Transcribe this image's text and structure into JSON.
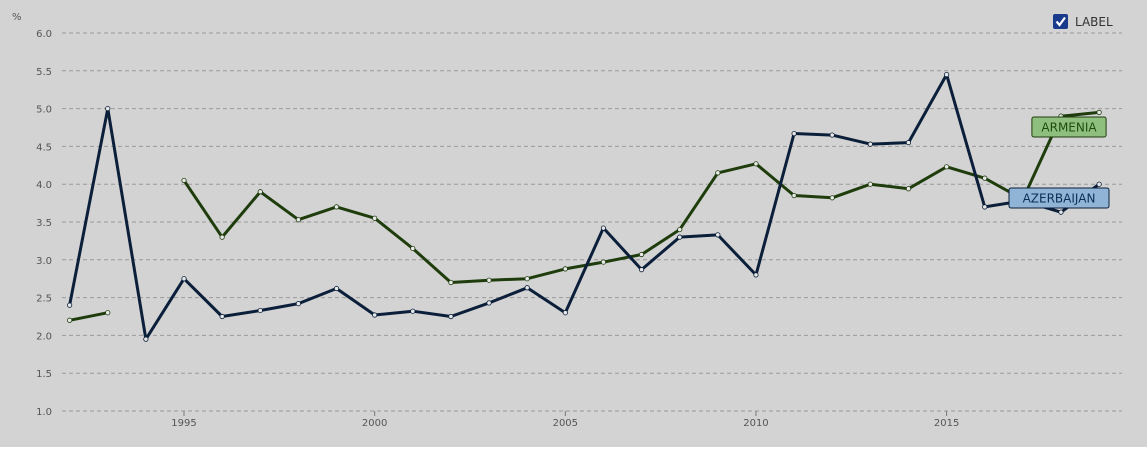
{
  "chart_data": {
    "type": "line",
    "ylabel": "%",
    "xlim": [
      1991.8,
      2019.6
    ],
    "ylim": [
      1.0,
      6.0
    ],
    "yticks": [
      "1.0",
      "1.5",
      "2.0",
      "2.5",
      "3.0",
      "3.5",
      "4.0",
      "4.5",
      "5.0",
      "5.5",
      "6.0"
    ],
    "xticks": [
      "1995",
      "2000",
      "2005",
      "2010",
      "2015"
    ],
    "grid": true,
    "legend": {
      "label": "LABEL",
      "placement": "top-right",
      "checked": true
    },
    "series": [
      {
        "name": "ARMENIA",
        "color": "#1f3d0c",
        "label_bg": "#8fbf7f",
        "label_text_color": "#1f4d12",
        "points": [
          [
            1992,
            2.2
          ],
          [
            1993,
            2.3
          ],
          [
            1995,
            4.05
          ],
          [
            1996,
            3.3
          ],
          [
            1997,
            3.9
          ],
          [
            1998,
            3.53
          ],
          [
            1999,
            3.7
          ],
          [
            2000,
            3.55
          ],
          [
            2001,
            3.15
          ],
          [
            2002,
            2.7
          ],
          [
            2003,
            2.73
          ],
          [
            2004,
            2.75
          ],
          [
            2005,
            2.88
          ],
          [
            2006,
            2.97
          ],
          [
            2007,
            3.07
          ],
          [
            2008,
            3.4
          ],
          [
            2009,
            4.15
          ],
          [
            2010,
            4.27
          ],
          [
            2011,
            3.85
          ],
          [
            2012,
            3.82
          ],
          [
            2013,
            4.0
          ],
          [
            2014,
            3.94
          ],
          [
            2015,
            4.23
          ],
          [
            2016,
            4.08
          ],
          [
            2017,
            3.8
          ],
          [
            2018,
            4.9
          ],
          [
            2019,
            4.95
          ]
        ]
      },
      {
        "name": "AZERBAIJAN",
        "color": "#0b1f3a",
        "label_bg": "#8fb4d6",
        "label_text_color": "#0b2e55",
        "points": [
          [
            1992,
            2.4
          ],
          [
            1993,
            5.0
          ],
          [
            1994,
            1.95
          ],
          [
            1995,
            2.75
          ],
          [
            1996,
            2.25
          ],
          [
            1997,
            2.33
          ],
          [
            1998,
            2.42
          ],
          [
            1999,
            2.62
          ],
          [
            2000,
            2.27
          ],
          [
            2001,
            2.32
          ],
          [
            2002,
            2.25
          ],
          [
            2003,
            2.43
          ],
          [
            2004,
            2.63
          ],
          [
            2005,
            2.3
          ],
          [
            2006,
            3.42
          ],
          [
            2007,
            2.87
          ],
          [
            2008,
            3.3
          ],
          [
            2009,
            3.33
          ],
          [
            2010,
            2.8
          ],
          [
            2011,
            4.67
          ],
          [
            2012,
            4.65
          ],
          [
            2013,
            4.53
          ],
          [
            2014,
            4.55
          ],
          [
            2015,
            5.45
          ],
          [
            2016,
            3.7
          ],
          [
            2017,
            3.78
          ],
          [
            2018,
            3.63
          ],
          [
            2019,
            4.0
          ]
        ]
      }
    ]
  },
  "colors": {
    "background": "#d3d3d3",
    "grid": "#9a9a9a",
    "legend_check": "#1a3a8c"
  }
}
